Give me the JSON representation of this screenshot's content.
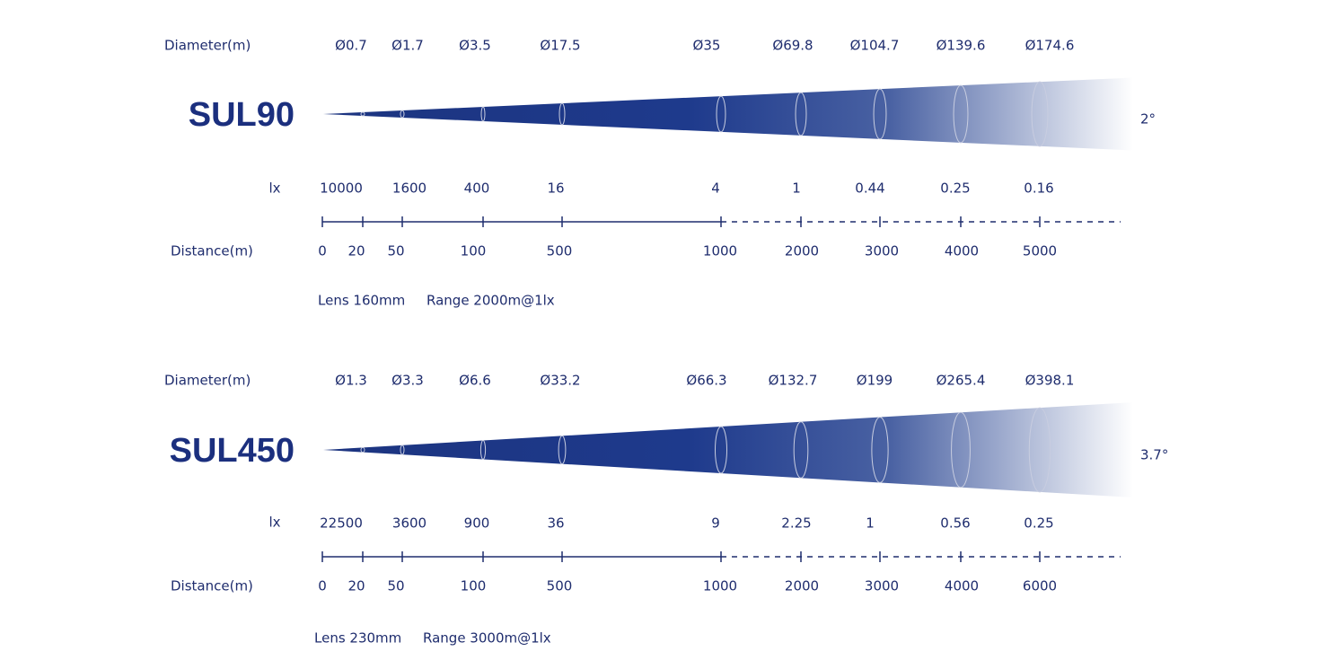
{
  "panels": [
    {
      "model": "SUL90",
      "angle": "2°",
      "diameter_label": "Diameter(m)",
      "diameters": [
        "Ø0.7",
        "Ø1.7",
        "Ø3.5",
        "Ø17.5",
        "Ø35",
        "Ø69.8",
        "Ø104.7",
        "Ø139.6",
        "Ø174.6"
      ],
      "lx_label": "lx",
      "lx": [
        10000,
        1600,
        400,
        16,
        4,
        1,
        0.44,
        0.25,
        0.16
      ],
      "distance_label": "Distance(m)",
      "distances": [
        0,
        20,
        50,
        100,
        500,
        1000,
        2000,
        3000,
        4000,
        5000
      ],
      "lens": "Lens 160mm",
      "range": "Range 2000m@1lx"
    },
    {
      "model": "SUL450",
      "angle": "3.7°",
      "diameter_label": "Diameter(m)",
      "diameters": [
        "Ø1.3",
        "Ø3.3",
        "Ø6.6",
        "Ø33.2",
        "Ø66.3",
        "Ø132.7",
        "Ø199",
        "Ø265.4",
        "Ø398.1"
      ],
      "lx_label": "lx",
      "lx": [
        22500,
        3600,
        900,
        36,
        9,
        2.25,
        1,
        0.56,
        0.25
      ],
      "distance_label": "Distance(m)",
      "distances": [
        0,
        20,
        50,
        100,
        500,
        1000,
        2000,
        3000,
        4000,
        6000
      ],
      "lens": "Lens 230mm",
      "range": "Range 3000m@1lx"
    }
  ]
}
